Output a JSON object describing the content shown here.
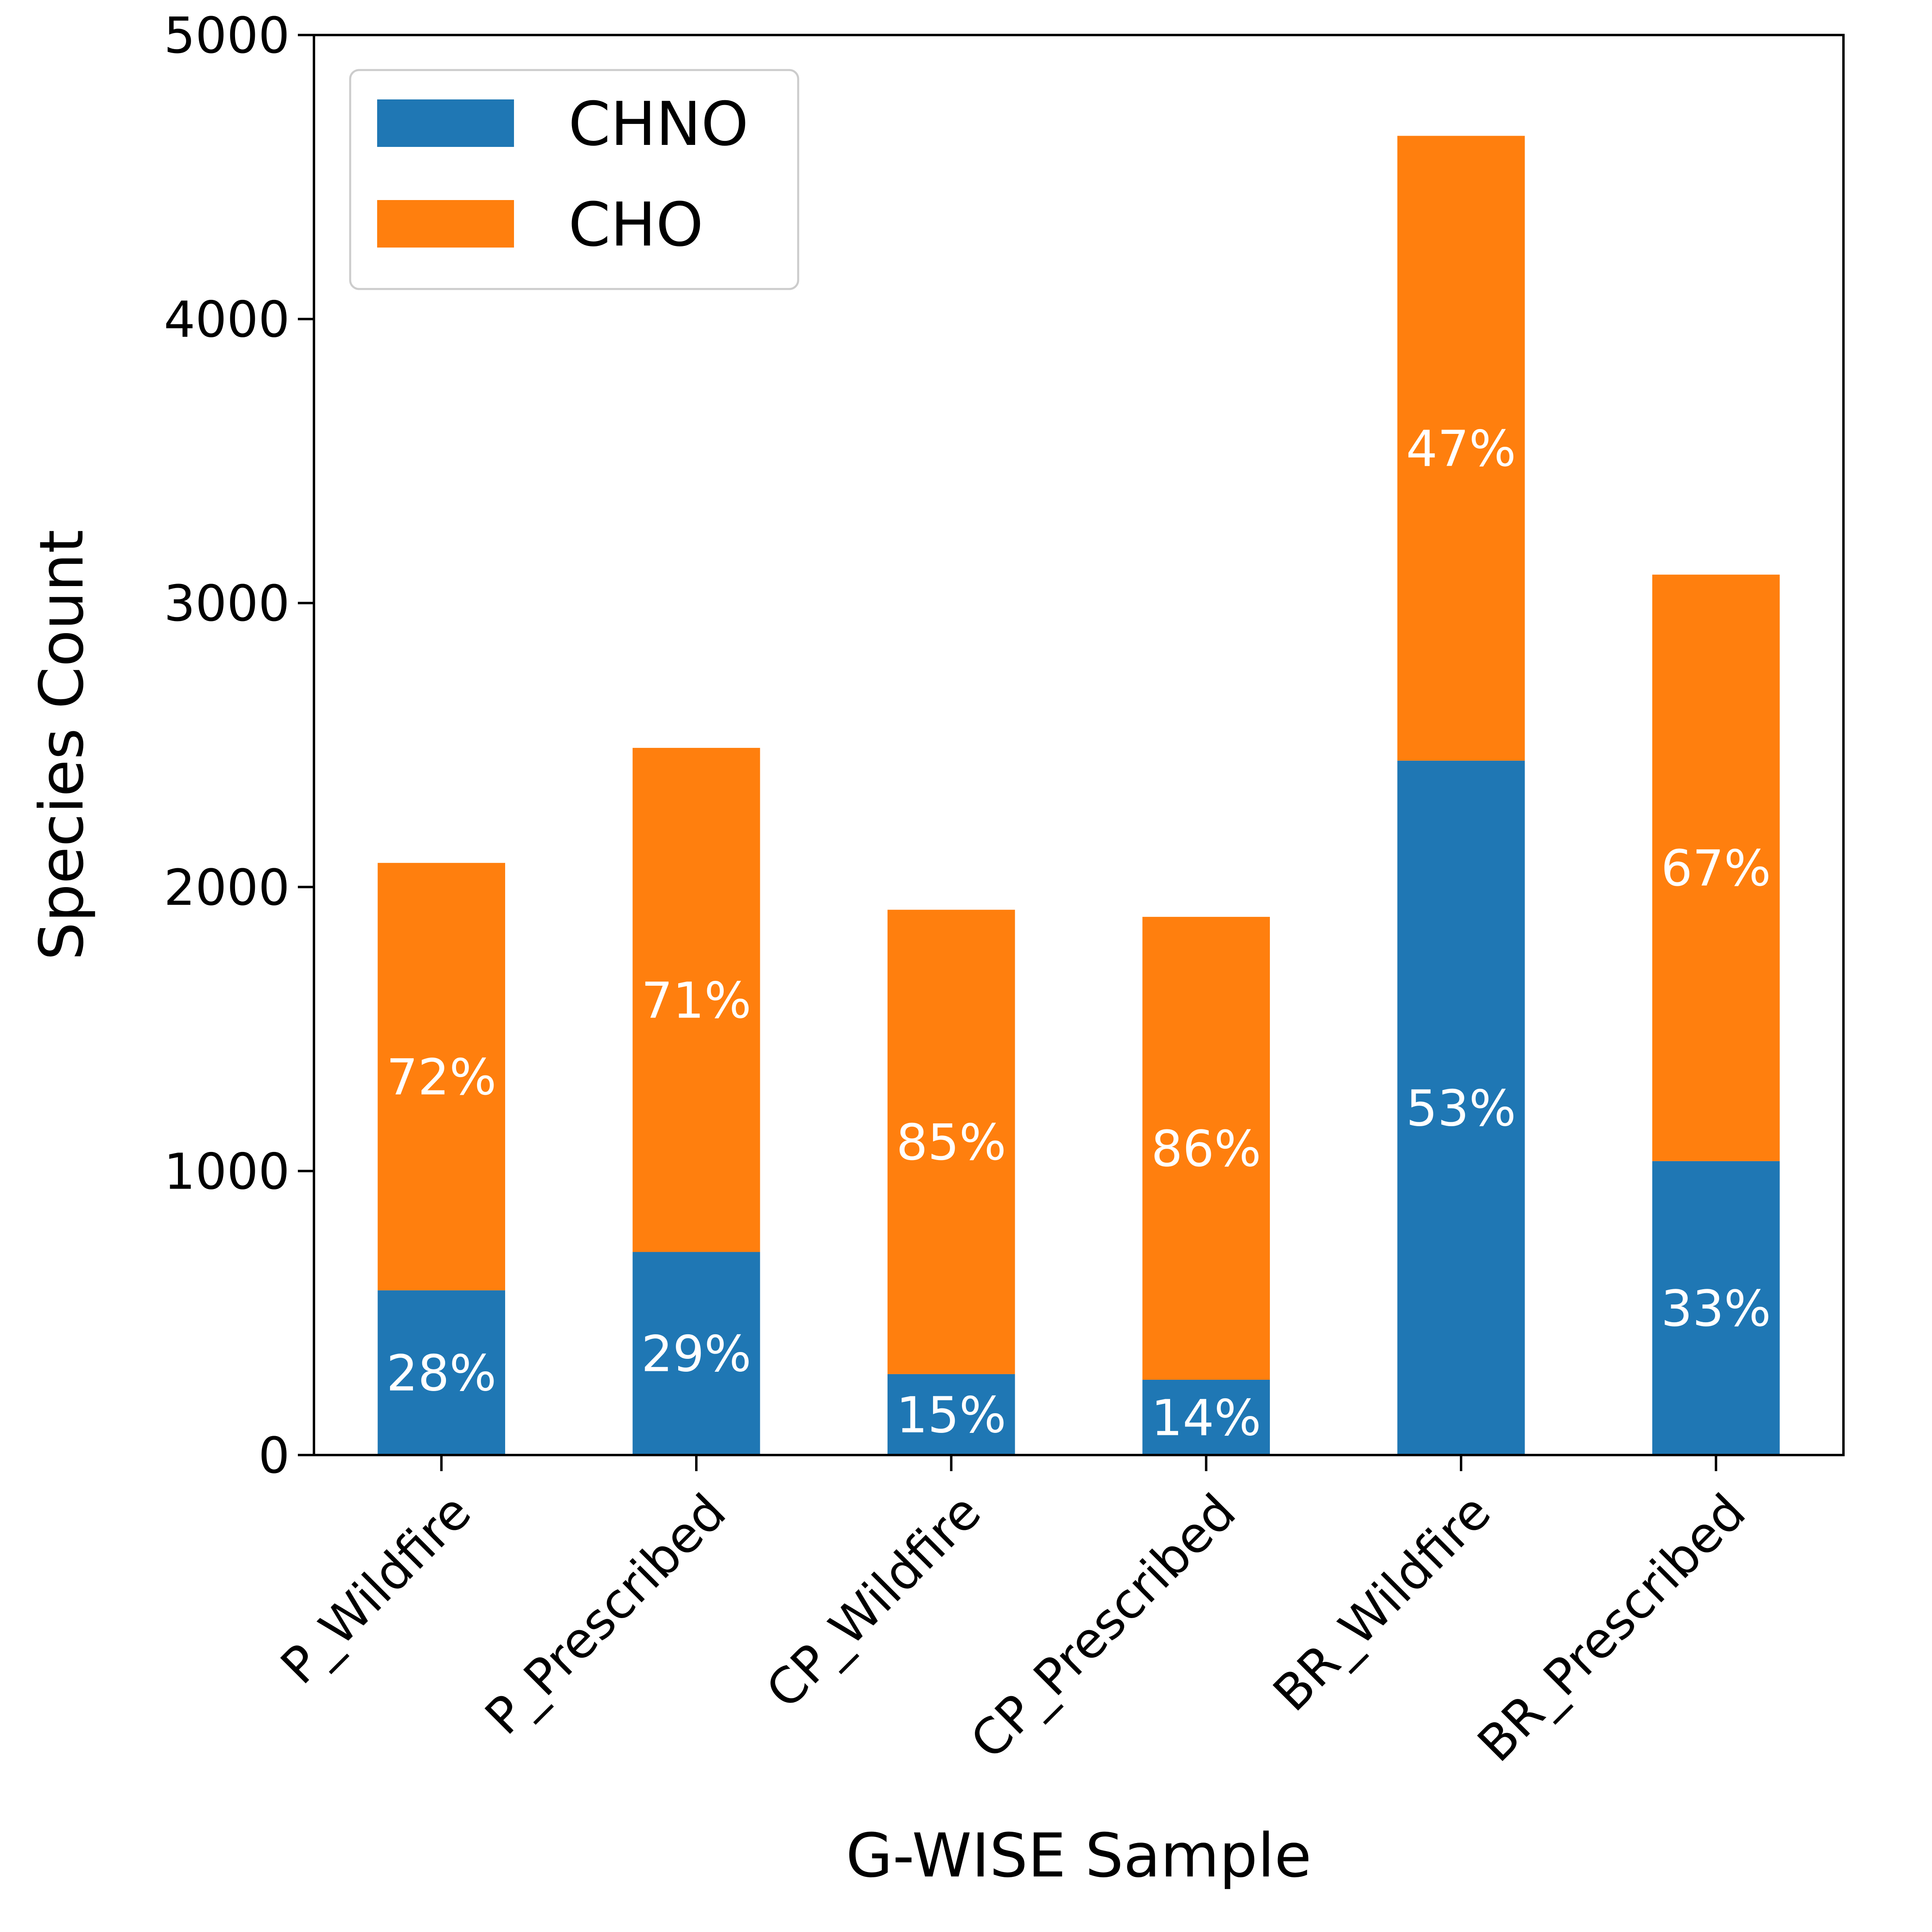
{
  "chart_data": {
    "type": "bar",
    "stacked": true,
    "categories": [
      "P_Wildfire",
      "P_Prescribed",
      "CP_Wildfire",
      "CP_Prescribed",
      "BR_Wildfire",
      "BR_Prescribed"
    ],
    "series": [
      {
        "name": "CHNO",
        "color": "#1f77b4",
        "values": [
          580,
          715,
          285,
          265,
          2445,
          1035
        ],
        "labels": [
          "28%",
          "29%",
          "15%",
          "14%",
          "53%",
          "33%"
        ]
      },
      {
        "name": "CHO",
        "color": "#ff7f0e",
        "values": [
          1505,
          1775,
          1635,
          1630,
          2200,
          2065
        ],
        "labels": [
          "72%",
          "71%",
          "85%",
          "86%",
          "47%",
          "67%"
        ]
      }
    ],
    "xlabel": "G-WISE Sample",
    "ylabel": "Species Count",
    "ylim": [
      0,
      5000
    ],
    "yticks": [
      "0",
      "1000",
      "2000",
      "3000",
      "4000",
      "5000"
    ],
    "legend": "top-left",
    "grid": false
  }
}
